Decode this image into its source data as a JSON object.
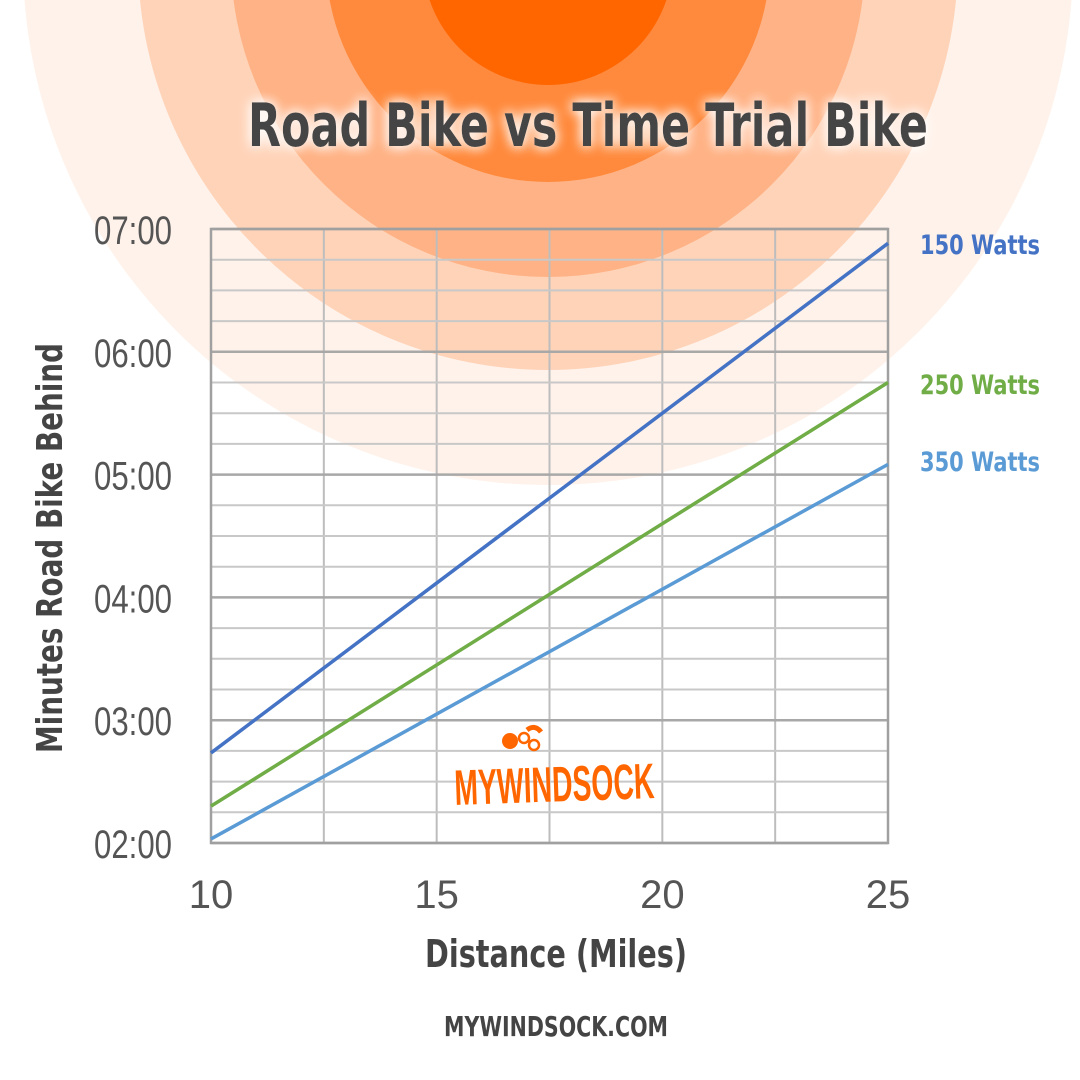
{
  "chart_data": {
    "type": "line",
    "title": "Road Bike vs Time Trial Bike",
    "xlabel": "Distance (Miles)",
    "ylabel": "Minutes Road Bike Behind",
    "xlim": [
      10,
      25
    ],
    "ylim": [
      "02:00",
      "07:00"
    ],
    "x_ticks": [
      "10",
      "15",
      "20",
      "25"
    ],
    "y_ticks": [
      "02:00",
      "03:00",
      "04:00",
      "05:00",
      "06:00",
      "07:00"
    ],
    "grid": true,
    "legend_placement": "right, at line ends",
    "series": [
      {
        "name": "150 Watts",
        "color": "#4472c4",
        "x": [
          10,
          25
        ],
        "y": [
          "02:44",
          "06:53"
        ]
      },
      {
        "name": "250 Watts",
        "color": "#70ad47",
        "x": [
          10,
          25
        ],
        "y": [
          "02:18",
          "05:45"
        ]
      },
      {
        "name": "350 Watts",
        "color": "#5b9bd5",
        "x": [
          10,
          25
        ],
        "y": [
          "02:02",
          "05:05"
        ]
      }
    ]
  },
  "logo_text": "MYWINDSOCK",
  "footer": "MYWINDSOCK.COM",
  "colors": {
    "accent": "#ff6600"
  }
}
